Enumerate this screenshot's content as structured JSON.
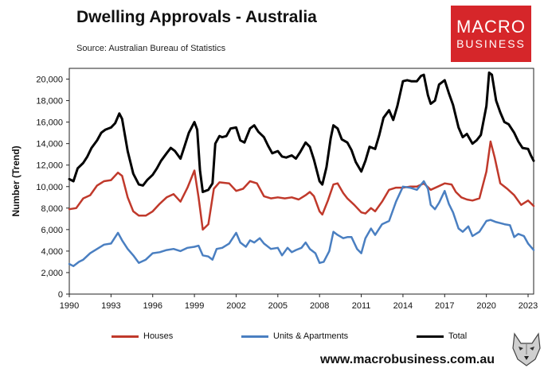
{
  "header": {
    "title": "Dwelling Approvals - Australia",
    "source": "Source: Australian Bureau of Statistics",
    "logo_line1": "MACRO",
    "logo_line2": "BUSINESS"
  },
  "footer": {
    "website": "www.macrobusiness.com.au"
  },
  "chart_data": {
    "type": "line",
    "title": "Dwelling Approvals - Australia",
    "xlabel": "",
    "ylabel": "Number (Trend)",
    "xlim": [
      1990,
      2023.4
    ],
    "ylim": [
      0,
      21000
    ],
    "x_ticks": [
      "1990",
      "1993",
      "1996",
      "1999",
      "2002",
      "2005",
      "2008",
      "2011",
      "2014",
      "2017",
      "2020",
      "2023"
    ],
    "y_ticks": [
      "0",
      "2,000",
      "4,000",
      "6,000",
      "8,000",
      "10,000",
      "12,000",
      "14,000",
      "16,000",
      "18,000",
      "20,000"
    ],
    "grid": false,
    "legend_position": "bottom",
    "series": [
      {
        "name": "Houses",
        "color": "#c0392b",
        "points": [
          [
            1990,
            7900
          ],
          [
            1990.5,
            8000
          ],
          [
            1991,
            8900
          ],
          [
            1991.5,
            9200
          ],
          [
            1992,
            10100
          ],
          [
            1992.5,
            10500
          ],
          [
            1993,
            10600
          ],
          [
            1993.5,
            11300
          ],
          [
            1993.8,
            11000
          ],
          [
            1994.2,
            9000
          ],
          [
            1994.6,
            7700
          ],
          [
            1995,
            7300
          ],
          [
            1995.5,
            7300
          ],
          [
            1996,
            7700
          ],
          [
            1996.5,
            8400
          ],
          [
            1997,
            9000
          ],
          [
            1997.5,
            9300
          ],
          [
            1998,
            8600
          ],
          [
            1998.5,
            9900
          ],
          [
            1999,
            11500
          ],
          [
            1999.3,
            9000
          ],
          [
            1999.6,
            6000
          ],
          [
            2000,
            6500
          ],
          [
            2000.4,
            9800
          ],
          [
            2000.8,
            10400
          ],
          [
            2001.5,
            10300
          ],
          [
            2002,
            9600
          ],
          [
            2002.5,
            9800
          ],
          [
            2003,
            10500
          ],
          [
            2003.5,
            10300
          ],
          [
            2004,
            9100
          ],
          [
            2004.5,
            8900
          ],
          [
            2005,
            9000
          ],
          [
            2005.5,
            8900
          ],
          [
            2006,
            9000
          ],
          [
            2006.5,
            8800
          ],
          [
            2007,
            9200
          ],
          [
            2007.3,
            9500
          ],
          [
            2007.6,
            9100
          ],
          [
            2008,
            7700
          ],
          [
            2008.2,
            7400
          ],
          [
            2008.6,
            8700
          ],
          [
            2009,
            10200
          ],
          [
            2009.3,
            10300
          ],
          [
            2009.7,
            9400
          ],
          [
            2010,
            8900
          ],
          [
            2010.5,
            8300
          ],
          [
            2011,
            7600
          ],
          [
            2011.3,
            7500
          ],
          [
            2011.7,
            8000
          ],
          [
            2012,
            7700
          ],
          [
            2012.5,
            8600
          ],
          [
            2013,
            9700
          ],
          [
            2013.5,
            9900
          ],
          [
            2014,
            9900
          ],
          [
            2014.5,
            10000
          ],
          [
            2015,
            10000
          ],
          [
            2015.5,
            10300
          ],
          [
            2016,
            9700
          ],
          [
            2016.5,
            10000
          ],
          [
            2017,
            10300
          ],
          [
            2017.5,
            10200
          ],
          [
            2017.8,
            9500
          ],
          [
            2018.2,
            9000
          ],
          [
            2018.6,
            8800
          ],
          [
            2019,
            8700
          ],
          [
            2019.5,
            8900
          ],
          [
            2020,
            11400
          ],
          [
            2020.3,
            14200
          ],
          [
            2020.6,
            12700
          ],
          [
            2021,
            10300
          ],
          [
            2021.5,
            9800
          ],
          [
            2022,
            9200
          ],
          [
            2022.5,
            8300
          ],
          [
            2023,
            8700
          ],
          [
            2023.4,
            8200
          ]
        ]
      },
      {
        "name": "Units & Apartments",
        "color": "#4a7fc1",
        "points": [
          [
            1990,
            2800
          ],
          [
            1990.3,
            2600
          ],
          [
            1990.7,
            3000
          ],
          [
            1991,
            3200
          ],
          [
            1991.5,
            3800
          ],
          [
            1992,
            4200
          ],
          [
            1992.5,
            4600
          ],
          [
            1993,
            4700
          ],
          [
            1993.5,
            5700
          ],
          [
            1993.8,
            5000
          ],
          [
            1994.2,
            4200
          ],
          [
            1994.6,
            3600
          ],
          [
            1995,
            2900
          ],
          [
            1995.5,
            3200
          ],
          [
            1996,
            3800
          ],
          [
            1996.5,
            3900
          ],
          [
            1997,
            4100
          ],
          [
            1997.5,
            4200
          ],
          [
            1998,
            4000
          ],
          [
            1998.5,
            4300
          ],
          [
            1999,
            4400
          ],
          [
            1999.3,
            4500
          ],
          [
            1999.6,
            3600
          ],
          [
            2000,
            3500
          ],
          [
            2000.3,
            3200
          ],
          [
            2000.6,
            4200
          ],
          [
            2001,
            4300
          ],
          [
            2001.5,
            4700
          ],
          [
            2002,
            5700
          ],
          [
            2002.3,
            4800
          ],
          [
            2002.7,
            4400
          ],
          [
            2003,
            5000
          ],
          [
            2003.3,
            4800
          ],
          [
            2003.7,
            5200
          ],
          [
            2004,
            4700
          ],
          [
            2004.5,
            4200
          ],
          [
            2005,
            4300
          ],
          [
            2005.3,
            3600
          ],
          [
            2005.7,
            4300
          ],
          [
            2006,
            3900
          ],
          [
            2006.3,
            4100
          ],
          [
            2006.7,
            4300
          ],
          [
            2007,
            4800
          ],
          [
            2007.3,
            4200
          ],
          [
            2007.7,
            3800
          ],
          [
            2008,
            2900
          ],
          [
            2008.3,
            3000
          ],
          [
            2008.7,
            4000
          ],
          [
            2009,
            5800
          ],
          [
            2009.3,
            5500
          ],
          [
            2009.7,
            5200
          ],
          [
            2010,
            5300
          ],
          [
            2010.3,
            5300
          ],
          [
            2010.7,
            4200
          ],
          [
            2011,
            3800
          ],
          [
            2011.3,
            5200
          ],
          [
            2011.7,
            6100
          ],
          [
            2012,
            5500
          ],
          [
            2012.5,
            6500
          ],
          [
            2013,
            6800
          ],
          [
            2013.5,
            8600
          ],
          [
            2014,
            10000
          ],
          [
            2014.5,
            9900
          ],
          [
            2015,
            9700
          ],
          [
            2015.5,
            10500
          ],
          [
            2015.8,
            9800
          ],
          [
            2016,
            8300
          ],
          [
            2016.3,
            7900
          ],
          [
            2016.6,
            8500
          ],
          [
            2017,
            9600
          ],
          [
            2017.3,
            8400
          ],
          [
            2017.6,
            7600
          ],
          [
            2018,
            6100
          ],
          [
            2018.3,
            5800
          ],
          [
            2018.7,
            6300
          ],
          [
            2019,
            5400
          ],
          [
            2019.5,
            5800
          ],
          [
            2020,
            6800
          ],
          [
            2020.3,
            6900
          ],
          [
            2020.7,
            6700
          ],
          [
            2021,
            6600
          ],
          [
            2021.3,
            6500
          ],
          [
            2021.7,
            6400
          ],
          [
            2022,
            5300
          ],
          [
            2022.3,
            5600
          ],
          [
            2022.7,
            5400
          ],
          [
            2023,
            4700
          ],
          [
            2023.4,
            4100
          ]
        ]
      },
      {
        "name": "Total",
        "color": "#000000",
        "points": [
          [
            1990,
            10700
          ],
          [
            1990.3,
            10500
          ],
          [
            1990.6,
            11700
          ],
          [
            1991,
            12200
          ],
          [
            1991.3,
            12800
          ],
          [
            1991.6,
            13600
          ],
          [
            1992,
            14300
          ],
          [
            1992.3,
            15000
          ],
          [
            1992.6,
            15300
          ],
          [
            1993,
            15500
          ],
          [
            1993.3,
            15900
          ],
          [
            1993.6,
            16800
          ],
          [
            1993.8,
            16300
          ],
          [
            1994.2,
            13300
          ],
          [
            1994.6,
            11200
          ],
          [
            1995,
            10200
          ],
          [
            1995.3,
            10100
          ],
          [
            1995.6,
            10600
          ],
          [
            1996,
            11100
          ],
          [
            1996.3,
            11700
          ],
          [
            1996.6,
            12400
          ],
          [
            1997,
            13100
          ],
          [
            1997.3,
            13600
          ],
          [
            1997.6,
            13300
          ],
          [
            1998,
            12600
          ],
          [
            1998.3,
            13800
          ],
          [
            1998.6,
            15000
          ],
          [
            1999,
            16000
          ],
          [
            1999.2,
            15300
          ],
          [
            1999.4,
            11500
          ],
          [
            1999.6,
            9500
          ],
          [
            2000,
            9700
          ],
          [
            2000.3,
            10300
          ],
          [
            2000.5,
            14000
          ],
          [
            2000.8,
            14700
          ],
          [
            2001,
            14600
          ],
          [
            2001.3,
            14700
          ],
          [
            2001.6,
            15400
          ],
          [
            2002,
            15500
          ],
          [
            2002.3,
            14300
          ],
          [
            2002.6,
            14100
          ],
          [
            2003,
            15400
          ],
          [
            2003.3,
            15700
          ],
          [
            2003.6,
            15100
          ],
          [
            2004,
            14600
          ],
          [
            2004.3,
            13800
          ],
          [
            2004.6,
            13100
          ],
          [
            2005,
            13300
          ],
          [
            2005.3,
            12800
          ],
          [
            2005.6,
            12700
          ],
          [
            2006,
            12900
          ],
          [
            2006.3,
            12600
          ],
          [
            2006.6,
            13200
          ],
          [
            2007,
            14100
          ],
          [
            2007.3,
            13700
          ],
          [
            2007.6,
            12500
          ],
          [
            2008,
            10500
          ],
          [
            2008.2,
            10200
          ],
          [
            2008.5,
            11800
          ],
          [
            2008.8,
            14500
          ],
          [
            2009,
            15700
          ],
          [
            2009.3,
            15400
          ],
          [
            2009.6,
            14400
          ],
          [
            2010,
            14100
          ],
          [
            2010.3,
            13400
          ],
          [
            2010.6,
            12300
          ],
          [
            2011,
            11400
          ],
          [
            2011.3,
            12400
          ],
          [
            2011.6,
            13700
          ],
          [
            2012,
            13500
          ],
          [
            2012.3,
            14800
          ],
          [
            2012.6,
            16400
          ],
          [
            2013,
            17100
          ],
          [
            2013.3,
            16200
          ],
          [
            2013.6,
            17500
          ],
          [
            2014,
            19800
          ],
          [
            2014.3,
            19900
          ],
          [
            2014.6,
            19800
          ],
          [
            2015,
            19800
          ],
          [
            2015.3,
            20300
          ],
          [
            2015.5,
            20400
          ],
          [
            2015.8,
            18500
          ],
          [
            2016,
            17700
          ],
          [
            2016.3,
            18000
          ],
          [
            2016.6,
            19500
          ],
          [
            2017,
            19900
          ],
          [
            2017.3,
            18700
          ],
          [
            2017.6,
            17600
          ],
          [
            2018,
            15500
          ],
          [
            2018.3,
            14600
          ],
          [
            2018.6,
            14900
          ],
          [
            2019,
            14000
          ],
          [
            2019.3,
            14300
          ],
          [
            2019.6,
            14800
          ],
          [
            2020,
            17500
          ],
          [
            2020.2,
            20600
          ],
          [
            2020.4,
            20400
          ],
          [
            2020.7,
            18000
          ],
          [
            2021,
            16900
          ],
          [
            2021.3,
            16000
          ],
          [
            2021.6,
            15800
          ],
          [
            2022,
            15000
          ],
          [
            2022.3,
            14200
          ],
          [
            2022.6,
            13600
          ],
          [
            2023,
            13500
          ],
          [
            2023.2,
            12900
          ],
          [
            2023.4,
            12400
          ]
        ]
      }
    ]
  }
}
